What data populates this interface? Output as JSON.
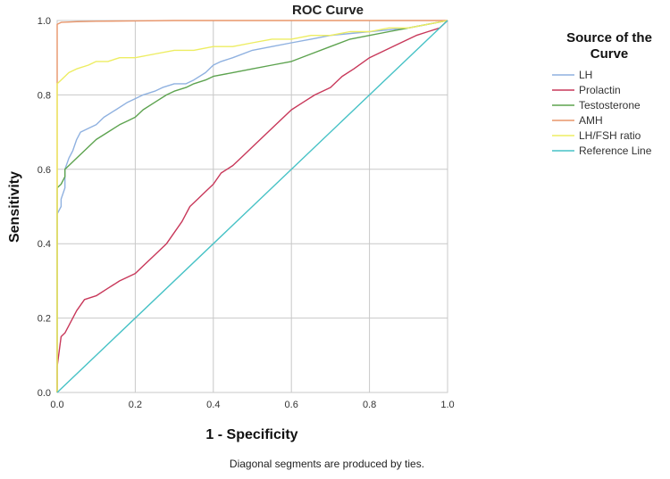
{
  "chart_data": {
    "type": "line",
    "title": "ROC Curve",
    "xlabel": "1 - Specificity",
    "ylabel": "Sensitivity",
    "xlim": [
      0,
      1
    ],
    "ylim": [
      0,
      1
    ],
    "xticks": [
      "0.0",
      "0.2",
      "0.4",
      "0.6",
      "0.8",
      "1.0"
    ],
    "yticks": [
      "0.0",
      "0.2",
      "0.4",
      "0.6",
      "0.8",
      "1.0"
    ],
    "grid": true,
    "legend": {
      "title": [
        "Source of the",
        "Curve"
      ],
      "placement": "right"
    },
    "footnote": "Diagonal segments are produced by ties.",
    "series": [
      {
        "name": "LH",
        "color": "#8fb1e0",
        "x": [
          0,
          0,
          0.01,
          0.01,
          0.02,
          0.02,
          0.03,
          0.04,
          0.05,
          0.06,
          0.08,
          0.1,
          0.12,
          0.15,
          0.18,
          0.2,
          0.22,
          0.25,
          0.27,
          0.3,
          0.33,
          0.35,
          0.38,
          0.4,
          0.42,
          0.45,
          0.5,
          0.55,
          0.6,
          0.65,
          0.7,
          0.8,
          0.9,
          0.95,
          1.0
        ],
        "y": [
          0,
          0.48,
          0.5,
          0.52,
          0.55,
          0.6,
          0.63,
          0.65,
          0.68,
          0.7,
          0.71,
          0.72,
          0.74,
          0.76,
          0.78,
          0.79,
          0.8,
          0.81,
          0.82,
          0.83,
          0.83,
          0.84,
          0.86,
          0.88,
          0.89,
          0.9,
          0.92,
          0.93,
          0.94,
          0.95,
          0.96,
          0.97,
          0.98,
          0.99,
          1.0
        ]
      },
      {
        "name": "Prolactin",
        "color": "#c8385a",
        "x": [
          0,
          0,
          0.01,
          0.02,
          0.03,
          0.05,
          0.07,
          0.1,
          0.13,
          0.16,
          0.18,
          0.2,
          0.22,
          0.25,
          0.28,
          0.3,
          0.32,
          0.34,
          0.36,
          0.38,
          0.4,
          0.42,
          0.45,
          0.48,
          0.5,
          0.53,
          0.56,
          0.6,
          0.63,
          0.66,
          0.7,
          0.73,
          0.76,
          0.8,
          0.84,
          0.88,
          0.92,
          0.95,
          0.98,
          1.0
        ],
        "y": [
          0,
          0.07,
          0.15,
          0.16,
          0.18,
          0.22,
          0.25,
          0.26,
          0.28,
          0.3,
          0.31,
          0.32,
          0.34,
          0.37,
          0.4,
          0.43,
          0.46,
          0.5,
          0.52,
          0.54,
          0.56,
          0.59,
          0.61,
          0.64,
          0.66,
          0.69,
          0.72,
          0.76,
          0.78,
          0.8,
          0.82,
          0.85,
          0.87,
          0.9,
          0.92,
          0.94,
          0.96,
          0.97,
          0.98,
          1.0
        ]
      },
      {
        "name": "Testosterone",
        "color": "#5da34f",
        "x": [
          0,
          0,
          0.01,
          0.02,
          0.02,
          0.03,
          0.05,
          0.07,
          0.1,
          0.13,
          0.16,
          0.18,
          0.2,
          0.22,
          0.25,
          0.28,
          0.3,
          0.33,
          0.35,
          0.38,
          0.4,
          0.45,
          0.5,
          0.55,
          0.6,
          0.65,
          0.7,
          0.75,
          0.8,
          0.85,
          0.9,
          0.95,
          1.0
        ],
        "y": [
          0,
          0.55,
          0.56,
          0.58,
          0.6,
          0.61,
          0.63,
          0.65,
          0.68,
          0.7,
          0.72,
          0.73,
          0.74,
          0.76,
          0.78,
          0.8,
          0.81,
          0.82,
          0.83,
          0.84,
          0.85,
          0.86,
          0.87,
          0.88,
          0.89,
          0.91,
          0.93,
          0.95,
          0.96,
          0.97,
          0.98,
          0.99,
          1.0
        ]
      },
      {
        "name": "AMH",
        "color": "#e8956a",
        "x": [
          0,
          0,
          0.01,
          0.05,
          0.1,
          0.2,
          0.3,
          0.5,
          0.7,
          0.9,
          1.0
        ],
        "y": [
          0,
          0.99,
          0.995,
          0.997,
          0.998,
          0.999,
          1.0,
          1.0,
          1.0,
          1.0,
          1.0
        ]
      },
      {
        "name": "LH/FSH ratio",
        "color": "#eded62",
        "x": [
          0,
          0,
          0.01,
          0.02,
          0.03,
          0.05,
          0.08,
          0.1,
          0.13,
          0.16,
          0.2,
          0.25,
          0.3,
          0.35,
          0.4,
          0.45,
          0.5,
          0.55,
          0.6,
          0.65,
          0.7,
          0.75,
          0.8,
          0.85,
          0.9,
          0.95,
          1.0
        ],
        "y": [
          0,
          0.83,
          0.84,
          0.85,
          0.86,
          0.87,
          0.88,
          0.89,
          0.89,
          0.9,
          0.9,
          0.91,
          0.92,
          0.92,
          0.93,
          0.93,
          0.94,
          0.95,
          0.95,
          0.96,
          0.96,
          0.97,
          0.97,
          0.98,
          0.98,
          0.99,
          1.0
        ]
      },
      {
        "name": "Reference Line",
        "color": "#47c2c6",
        "x": [
          0,
          1
        ],
        "y": [
          0,
          1
        ]
      }
    ]
  }
}
